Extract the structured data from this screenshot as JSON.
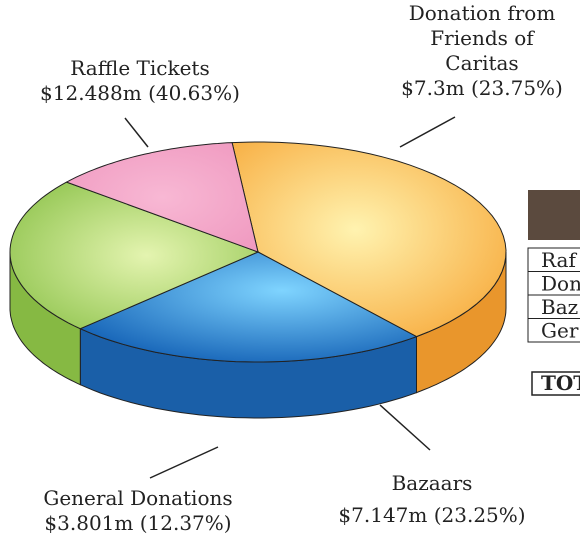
{
  "chart_data": {
    "type": "pie",
    "categories": [
      "Raffle Tickets",
      "Donation from\nFriends of\nCaritas",
      "Bazaars",
      "General Donations"
    ],
    "values": [
      12.488,
      7.3,
      7.147,
      3.801
    ],
    "value_labels": [
      "$12.488m (40.63%)",
      "$7.3m (23.75%)",
      "$7.147m (23.25%)",
      "$3.801m (12.37%)"
    ],
    "colors": [
      "#fbbd4e",
      "#2f86d6",
      "#a9d468",
      "#f3a7c9"
    ]
  },
  "table": {
    "rows": [
      "Raf",
      "Don",
      "Baz",
      "Ger"
    ],
    "total": "TOT"
  }
}
